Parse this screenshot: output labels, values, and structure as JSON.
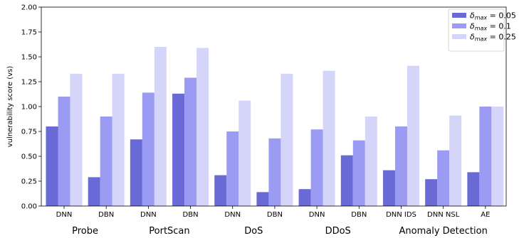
{
  "chart_data": {
    "type": "bar",
    "ylabel": "vulnerability score (vs)",
    "ylim": [
      0,
      2.0
    ],
    "yticks": [
      "0.00",
      "0.25",
      "0.50",
      "0.75",
      "1.00",
      "1.25",
      "1.50",
      "1.75",
      "2.00"
    ],
    "categories": [
      "DNN",
      "DBN",
      "DNN",
      "DBN",
      "DNN",
      "DBN",
      "DNN",
      "DBN",
      "DNN IDS",
      "DNN NSL",
      "AE"
    ],
    "groups": [
      {
        "label": "Probe",
        "span": [
          0,
          1
        ]
      },
      {
        "label": "PortScan",
        "span": [
          2,
          3
        ]
      },
      {
        "label": "DoS",
        "span": [
          4,
          5
        ]
      },
      {
        "label": "DDoS",
        "span": [
          6,
          7
        ]
      },
      {
        "label": "Anomaly Detection",
        "span": [
          8,
          10
        ]
      }
    ],
    "series": [
      {
        "name": "δmax = 0.05",
        "legend_sym": "δ",
        "legend_sub": "max",
        "legend_val": " = 0.05",
        "color": "#6a6ad6",
        "values": [
          0.8,
          0.29,
          0.67,
          1.13,
          0.31,
          0.14,
          0.17,
          0.51,
          0.36,
          0.27,
          0.34
        ]
      },
      {
        "name": "δmax = 0.1",
        "legend_sym": "δ",
        "legend_sub": "max",
        "legend_val": " = 0.1",
        "color": "#9b9bf4",
        "values": [
          1.1,
          0.9,
          1.14,
          1.29,
          0.75,
          0.68,
          0.77,
          0.66,
          0.8,
          0.56,
          1.0
        ]
      },
      {
        "name": "δmax = 0.25",
        "legend_sym": "δ",
        "legend_sub": "max",
        "legend_val": " = 0.25",
        "color": "#d5d5fa",
        "values": [
          1.33,
          1.33,
          1.6,
          1.59,
          1.06,
          1.33,
          1.36,
          0.9,
          1.41,
          0.91,
          1.0
        ]
      }
    ],
    "legend_position": "top-right",
    "grid": false
  }
}
